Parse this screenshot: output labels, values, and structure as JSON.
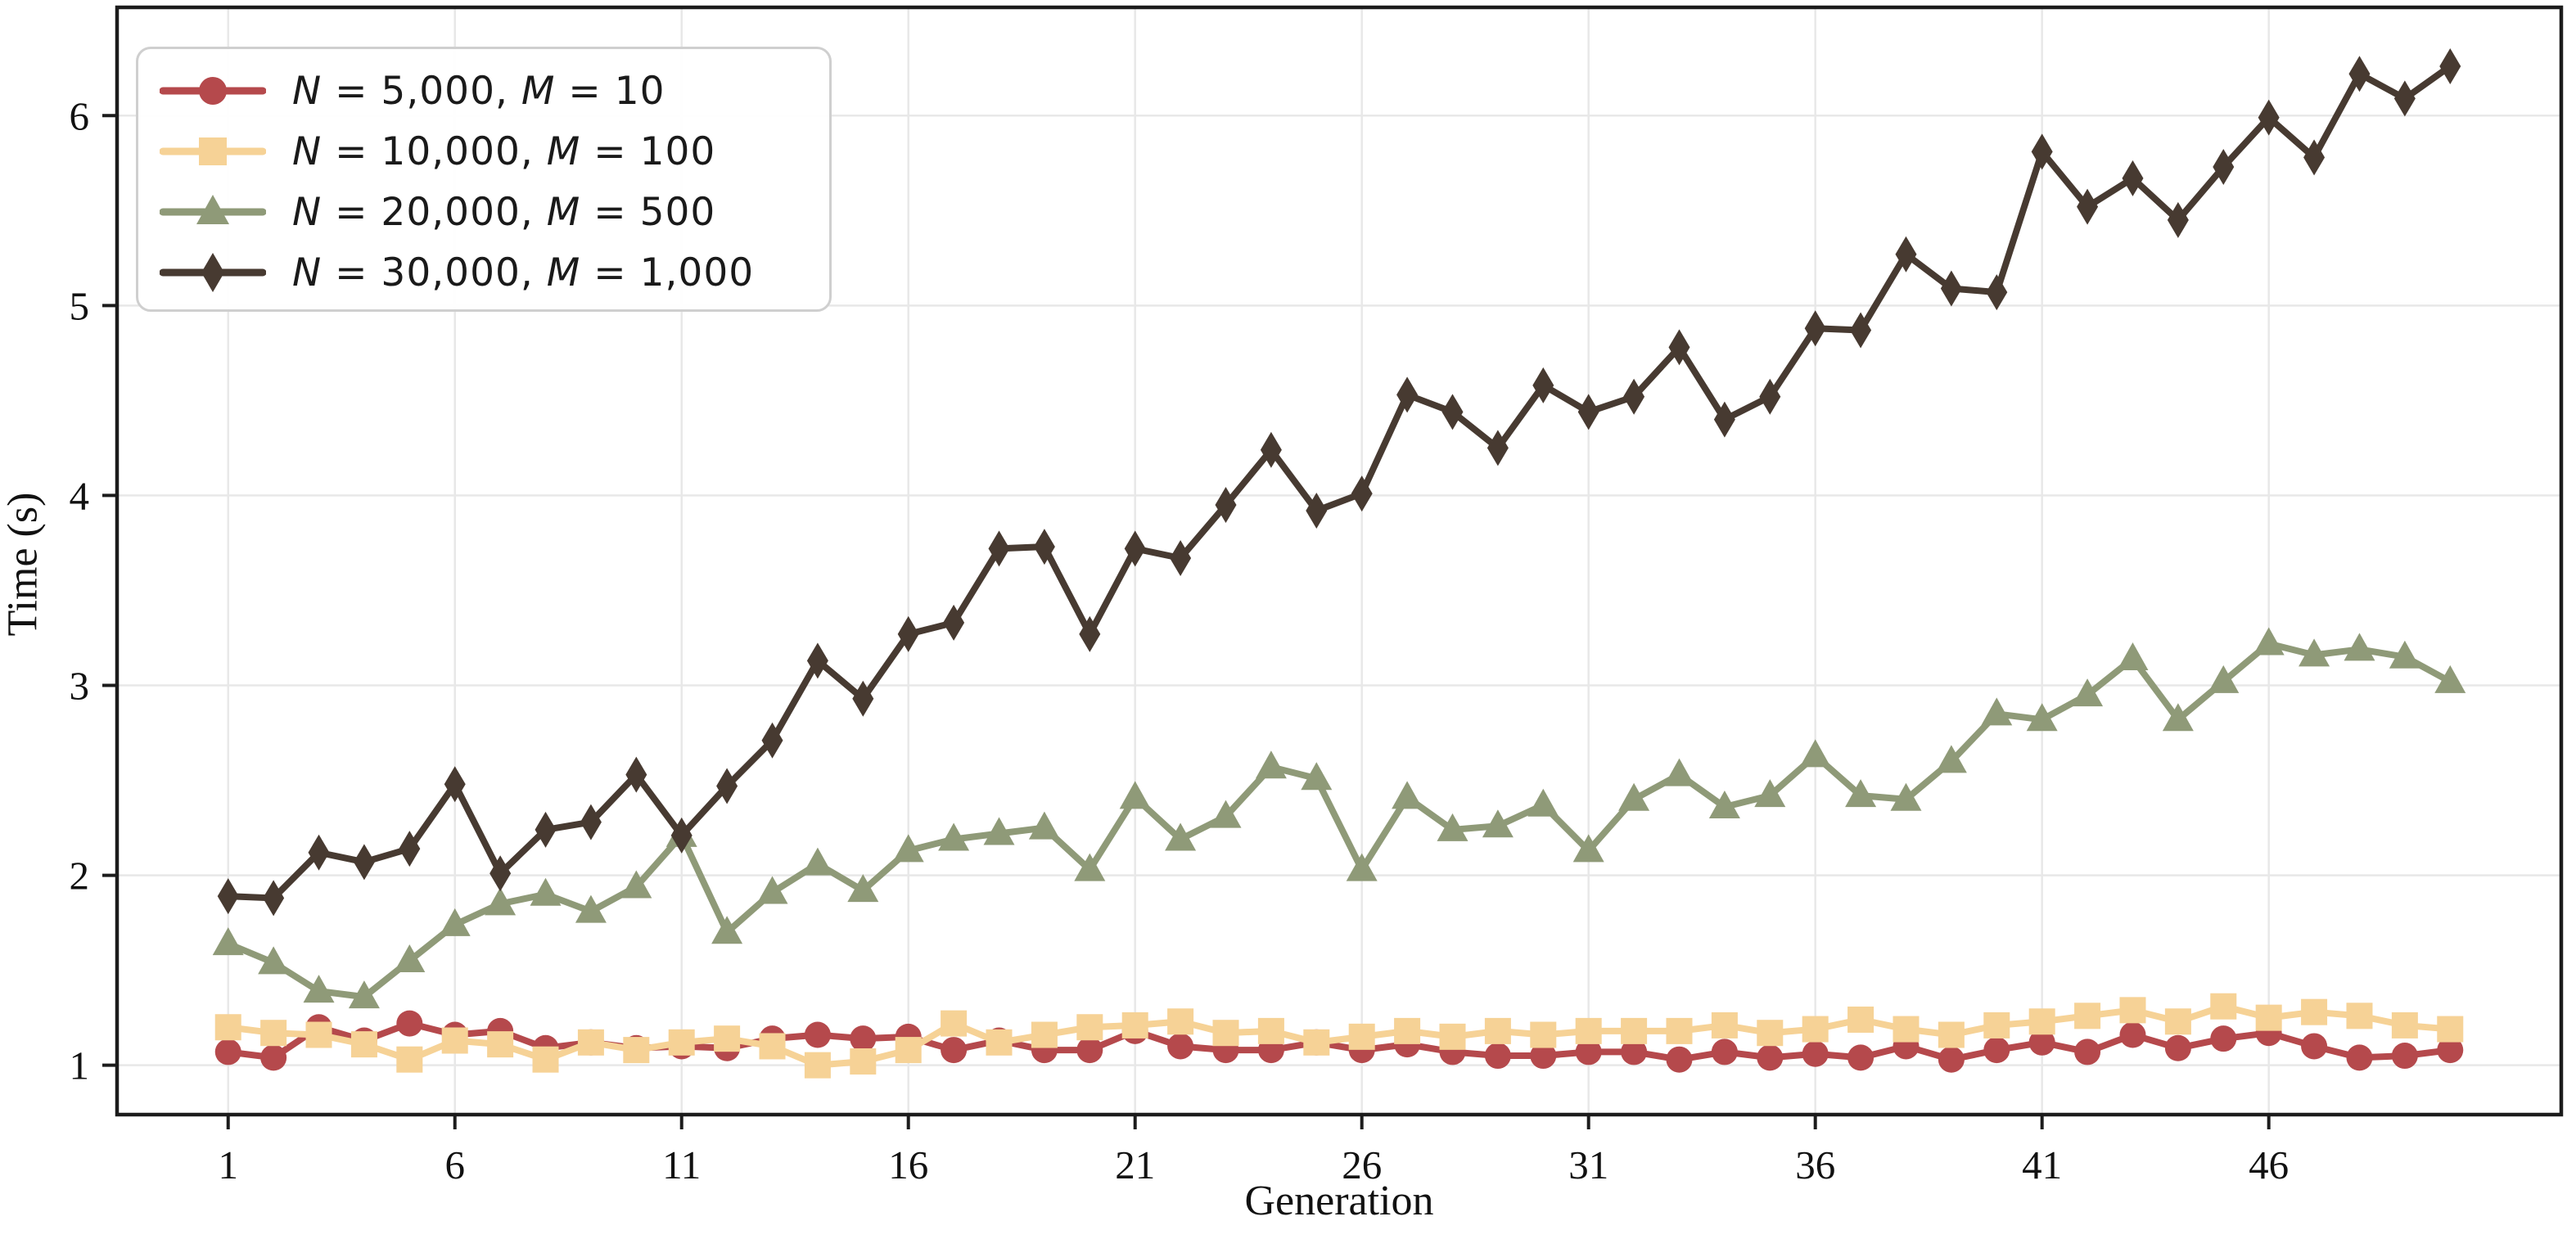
{
  "chart_data": {
    "type": "line",
    "title": "",
    "xlabel": "Generation",
    "ylabel": "Time (s)",
    "x_ticks": [
      1,
      6,
      11,
      16,
      21,
      26,
      31,
      36,
      41,
      46
    ],
    "y_ticks": [
      1,
      2,
      3,
      4,
      5,
      6
    ],
    "xlim": [
      -1.45,
      52.45
    ],
    "ylim": [
      0.74,
      6.57
    ],
    "grid": true,
    "legend_position": "upper left",
    "x": [
      1,
      2,
      3,
      4,
      5,
      6,
      7,
      8,
      9,
      10,
      11,
      12,
      13,
      14,
      15,
      16,
      17,
      18,
      19,
      20,
      21,
      22,
      23,
      24,
      25,
      26,
      27,
      28,
      29,
      30,
      31,
      32,
      33,
      34,
      35,
      36,
      37,
      38,
      39,
      40,
      41,
      42,
      43,
      44,
      45,
      46,
      47,
      48,
      49,
      50
    ],
    "series": [
      {
        "name": "N = 5,000, M = 10",
        "marker": "circle",
        "color": "#b5494c",
        "values": [
          1.07,
          1.04,
          1.2,
          1.13,
          1.22,
          1.16,
          1.18,
          1.09,
          1.12,
          1.09,
          1.1,
          1.09,
          1.14,
          1.16,
          1.14,
          1.15,
          1.08,
          1.13,
          1.08,
          1.08,
          1.18,
          1.1,
          1.08,
          1.08,
          1.12,
          1.08,
          1.11,
          1.07,
          1.05,
          1.05,
          1.07,
          1.07,
          1.03,
          1.07,
          1.04,
          1.06,
          1.04,
          1.1,
          1.03,
          1.08,
          1.12,
          1.07,
          1.16,
          1.09,
          1.14,
          1.17,
          1.1,
          1.04,
          1.05,
          1.08
        ]
      },
      {
        "name": "N = 10,000, M = 100",
        "marker": "square",
        "color": "#f6d296",
        "values": [
          1.2,
          1.17,
          1.16,
          1.11,
          1.03,
          1.13,
          1.11,
          1.03,
          1.12,
          1.08,
          1.12,
          1.14,
          1.1,
          1.0,
          1.02,
          1.08,
          1.22,
          1.12,
          1.16,
          1.2,
          1.21,
          1.23,
          1.17,
          1.18,
          1.12,
          1.15,
          1.18,
          1.15,
          1.18,
          1.16,
          1.18,
          1.18,
          1.18,
          1.21,
          1.17,
          1.19,
          1.24,
          1.19,
          1.16,
          1.21,
          1.23,
          1.26,
          1.29,
          1.23,
          1.31,
          1.25,
          1.28,
          1.26,
          1.21,
          1.19
        ]
      },
      {
        "name": "N = 20,000, M = 500",
        "marker": "triangle",
        "color": "#8f9a78",
        "values": [
          1.64,
          1.54,
          1.39,
          1.36,
          1.55,
          1.74,
          1.85,
          1.9,
          1.81,
          1.94,
          2.21,
          1.7,
          1.91,
          2.06,
          1.92,
          2.13,
          2.19,
          2.22,
          2.25,
          2.03,
          2.41,
          2.19,
          2.31,
          2.57,
          2.51,
          2.03,
          2.41,
          2.24,
          2.26,
          2.37,
          2.13,
          2.4,
          2.53,
          2.36,
          2.42,
          2.63,
          2.42,
          2.4,
          2.6,
          2.85,
          2.82,
          2.95,
          3.14,
          2.82,
          3.02,
          3.22,
          3.16,
          3.19,
          3.15,
          3.02
        ]
      },
      {
        "name": "N = 30,000, M = 1,000",
        "marker": "diamond",
        "color": "#473a31",
        "values": [
          1.89,
          1.88,
          2.12,
          2.07,
          2.14,
          2.48,
          2.01,
          2.24,
          2.28,
          2.53,
          2.21,
          2.47,
          2.71,
          3.13,
          2.93,
          3.27,
          3.33,
          3.72,
          3.73,
          3.27,
          3.72,
          3.67,
          3.95,
          4.24,
          3.92,
          4.01,
          4.53,
          4.44,
          4.25,
          4.58,
          4.44,
          4.52,
          4.78,
          4.4,
          4.52,
          4.88,
          4.87,
          5.27,
          5.09,
          5.07,
          5.81,
          5.52,
          5.67,
          5.45,
          5.73,
          5.99,
          5.78,
          6.22,
          6.09,
          6.26
        ]
      }
    ]
  },
  "style": {
    "grid_color": "#e8e8e8",
    "spine_color": "#1c1c1c",
    "background": "#ffffff",
    "tick_label_color": "#111111"
  }
}
